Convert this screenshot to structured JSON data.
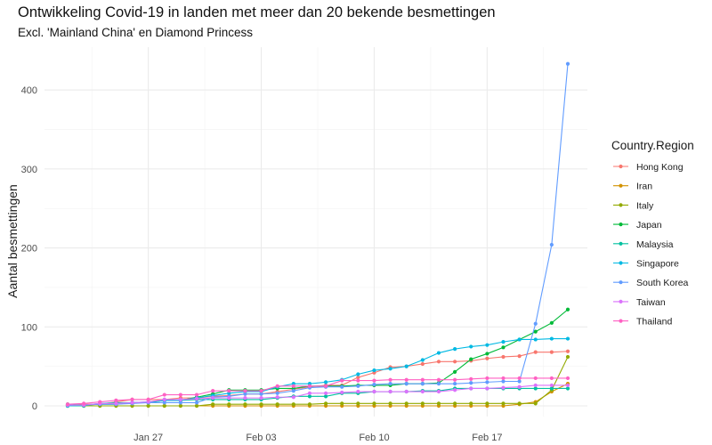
{
  "chart_data": {
    "type": "line",
    "title": "Ontwikkeling Covid-19 in landen met meer dan 20 bekende besmettingen",
    "subtitle": "Excl. 'Mainland China' en Diamond Princess",
    "xlabel": "",
    "ylabel": "Aantal besmettingen",
    "x_ticks": [
      {
        "date": "2020-01-27",
        "label": "Jan 27"
      },
      {
        "date": "2020-02-03",
        "label": "Feb 03"
      },
      {
        "date": "2020-02-10",
        "label": "Feb 10"
      },
      {
        "date": "2020-02-17",
        "label": "Feb 17"
      }
    ],
    "xlim": [
      "2020-01-22",
      "2020-02-22"
    ],
    "ylim": [
      0,
      435
    ],
    "y_ticks": [
      0,
      100,
      200,
      300,
      400
    ],
    "grid": true,
    "legend_title": "Country.Region",
    "legend_position": "right",
    "x": [
      "2020-01-22",
      "2020-01-23",
      "2020-01-24",
      "2020-01-25",
      "2020-01-26",
      "2020-01-27",
      "2020-01-28",
      "2020-01-29",
      "2020-01-30",
      "2020-01-31",
      "2020-02-01",
      "2020-02-02",
      "2020-02-03",
      "2020-02-04",
      "2020-02-05",
      "2020-02-06",
      "2020-02-07",
      "2020-02-08",
      "2020-02-09",
      "2020-02-10",
      "2020-02-11",
      "2020-02-12",
      "2020-02-13",
      "2020-02-14",
      "2020-02-15",
      "2020-02-16",
      "2020-02-17",
      "2020-02-18",
      "2020-02-19",
      "2020-02-20",
      "2020-02-21",
      "2020-02-22"
    ],
    "series": [
      {
        "name": "Hong Kong",
        "color": "#F8766D",
        "values": [
          0,
          2,
          2,
          5,
          8,
          8,
          8,
          10,
          10,
          12,
          13,
          15,
          15,
          18,
          21,
          24,
          26,
          26,
          36,
          42,
          49,
          50,
          53,
          56,
          56,
          57,
          60,
          62,
          63,
          68,
          68,
          69
        ]
      },
      {
        "name": "Iran",
        "color": "#D39200",
        "values": [
          0,
          0,
          0,
          0,
          0,
          0,
          0,
          0,
          0,
          0,
          0,
          0,
          0,
          0,
          0,
          0,
          0,
          0,
          0,
          0,
          0,
          0,
          0,
          0,
          0,
          0,
          0,
          0,
          2,
          5,
          18,
          28
        ]
      },
      {
        "name": "Italy",
        "color": "#93AA00",
        "values": [
          0,
          0,
          0,
          0,
          0,
          0,
          0,
          0,
          0,
          2,
          2,
          2,
          2,
          2,
          2,
          2,
          3,
          3,
          3,
          3,
          3,
          3,
          3,
          3,
          3,
          3,
          3,
          3,
          3,
          3,
          20,
          62
        ]
      },
      {
        "name": "Japan",
        "color": "#00BA38",
        "values": [
          2,
          1,
          2,
          2,
          4,
          4,
          7,
          7,
          11,
          15,
          20,
          20,
          20,
          22,
          22,
          25,
          25,
          25,
          26,
          26,
          26,
          28,
          28,
          29,
          43,
          59,
          66,
          74,
          84,
          94,
          105,
          122
        ]
      },
      {
        "name": "Malaysia",
        "color": "#00C19F",
        "values": [
          0,
          0,
          3,
          4,
          4,
          4,
          7,
          7,
          8,
          8,
          8,
          8,
          8,
          10,
          12,
          12,
          12,
          16,
          16,
          18,
          18,
          18,
          19,
          19,
          22,
          22,
          22,
          22,
          22,
          22,
          22,
          22
        ]
      },
      {
        "name": "Singapore",
        "color": "#00B9E3",
        "values": [
          0,
          1,
          3,
          3,
          4,
          5,
          7,
          7,
          10,
          13,
          16,
          18,
          18,
          24,
          28,
          28,
          30,
          33,
          40,
          45,
          47,
          50,
          58,
          67,
          72,
          75,
          77,
          81,
          84,
          84,
          85,
          85
        ]
      },
      {
        "name": "South Korea",
        "color": "#619CFF",
        "values": [
          1,
          1,
          2,
          2,
          3,
          4,
          4,
          4,
          4,
          11,
          12,
          15,
          15,
          16,
          19,
          23,
          24,
          24,
          25,
          27,
          28,
          28,
          28,
          28,
          28,
          29,
          30,
          31,
          31,
          104,
          204,
          433
        ]
      },
      {
        "name": "Taiwan",
        "color": "#DB72FB",
        "values": [
          1,
          1,
          3,
          3,
          4,
          5,
          8,
          8,
          9,
          10,
          10,
          10,
          10,
          11,
          11,
          16,
          16,
          17,
          18,
          18,
          18,
          18,
          18,
          18,
          20,
          22,
          22,
          23,
          24,
          26,
          26,
          26
        ]
      },
      {
        "name": "Thailand",
        "color": "#FF61C3",
        "values": [
          2,
          3,
          5,
          7,
          8,
          8,
          14,
          14,
          14,
          19,
          19,
          19,
          19,
          25,
          25,
          25,
          25,
          32,
          32,
          32,
          33,
          33,
          33,
          33,
          33,
          34,
          35,
          35,
          35,
          35,
          35,
          35
        ]
      }
    ]
  }
}
